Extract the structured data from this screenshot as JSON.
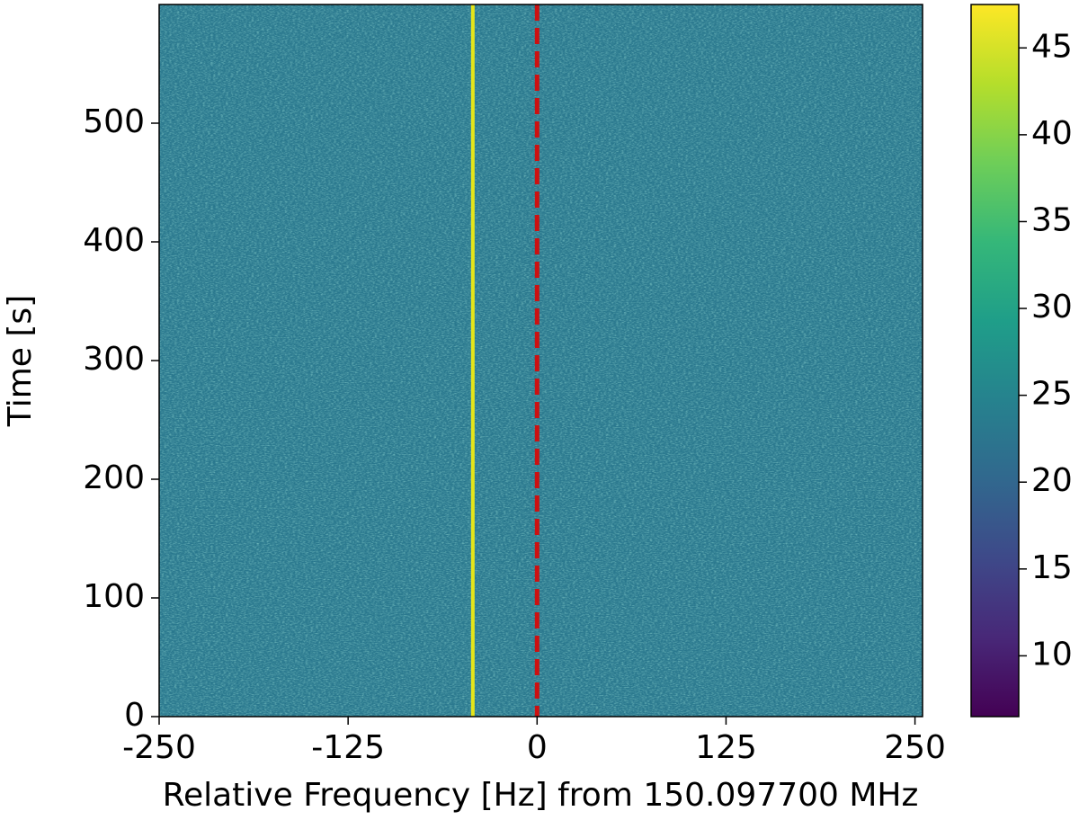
{
  "chart_data": {
    "type": "heatmap",
    "xlabel": "Relative Frequency [Hz] from 150.097700 MHz",
    "ylabel": "Time [s]",
    "xlim": [
      -250,
      255
    ],
    "xticks": [
      -250,
      -125,
      0,
      125,
      250
    ],
    "ylim": [
      0,
      600
    ],
    "yticks": [
      0,
      100,
      200,
      300,
      400,
      500
    ],
    "fill_color": "#2a788e",
    "lines": [
      {
        "x": -42.5,
        "color": "#e6e619",
        "style": "solid"
      },
      {
        "x": 0,
        "color": "#cc1111",
        "style": "dashed"
      }
    ],
    "colorbar": {
      "colormap": "viridis",
      "lim": [
        6.5,
        47.5
      ],
      "ticks": [
        10,
        15,
        20,
        25,
        30,
        35,
        40,
        45
      ]
    }
  }
}
